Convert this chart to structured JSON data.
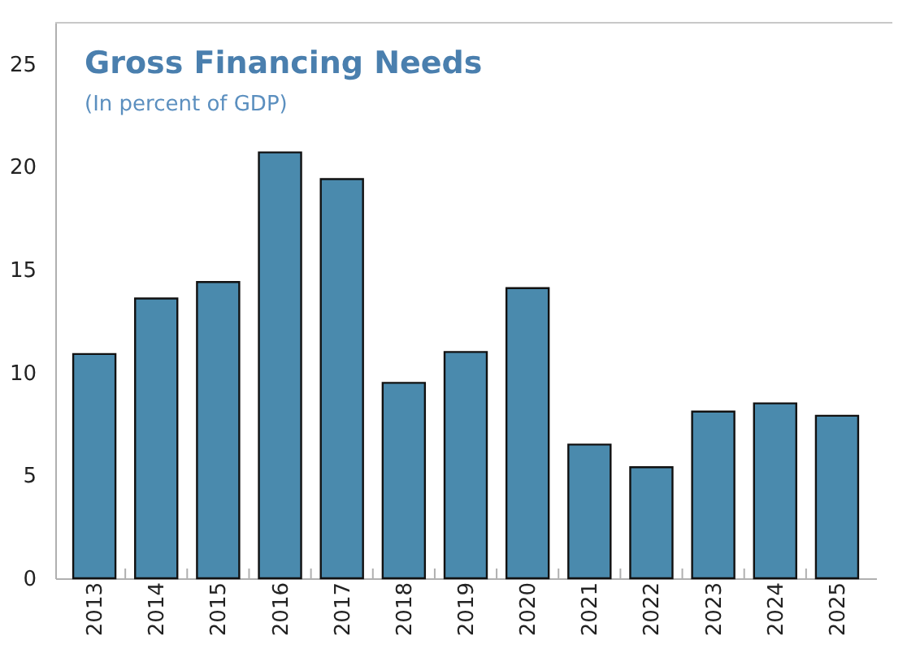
{
  "chart_data": {
    "type": "bar",
    "title": "Gross Financing Needs",
    "subtitle": "(In percent of GDP)",
    "categories": [
      "2013",
      "2014",
      "2015",
      "2016",
      "2017",
      "2018",
      "2019",
      "2020",
      "2021",
      "2022",
      "2023",
      "2024",
      "2025"
    ],
    "values": [
      10.9,
      13.6,
      14.4,
      20.7,
      19.4,
      9.5,
      11.0,
      14.1,
      6.5,
      5.4,
      8.1,
      8.5,
      7.9
    ],
    "color": "#4a8aad",
    "ylim": [
      0,
      27
    ],
    "yticks": [
      0,
      5,
      10,
      15,
      20,
      25
    ],
    "grid": false
  }
}
